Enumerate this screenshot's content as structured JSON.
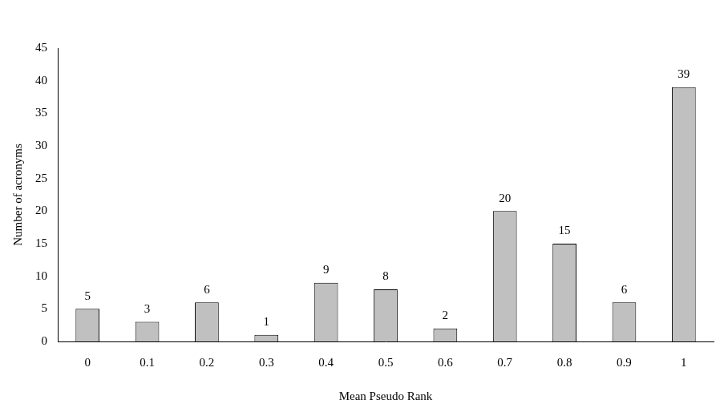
{
  "chart_data": {
    "type": "bar",
    "categories": [
      "0",
      "0.1",
      "0.2",
      "0.3",
      "0.4",
      "0.5",
      "0.6",
      "0.7",
      "0.8",
      "0.9",
      "1"
    ],
    "values": [
      5,
      3,
      6,
      1,
      9,
      8,
      2,
      20,
      15,
      6,
      39
    ],
    "color": "#c0c0c0",
    "x_label": "Mean Pseudo Rank",
    "y_label": "Number of acronyms",
    "ylim": [
      0,
      45
    ],
    "yticks": [
      0,
      5,
      10,
      15,
      20,
      25,
      30,
      35,
      40,
      45
    ],
    "grid": false,
    "data_labels": true
  }
}
